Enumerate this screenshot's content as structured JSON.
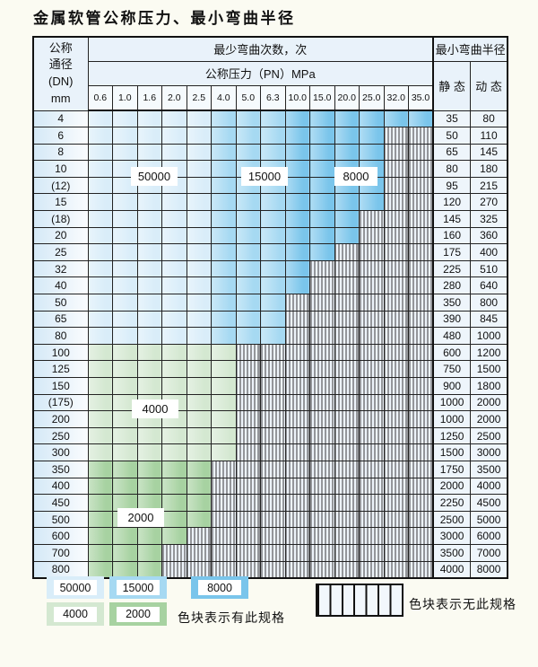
{
  "title": "金属软管公称压力、最小弯曲半径",
  "colors": {
    "blue_50000": "#d9edf9",
    "blue_15000": "#a6d9f2",
    "blue_8000": "#7ac5eb",
    "green_4000": "#d4e8d1",
    "green_2000": "#a7d2a1",
    "hatch_bg": "#edf3fa"
  },
  "table": {
    "header": {
      "dn_lines": [
        "公称",
        "通径",
        "(DN)",
        "mm"
      ],
      "bend_cycles": "最少弯曲次数，次",
      "pressure": "公称压力（PN）MPa",
      "radius": "最小弯曲半径",
      "static_label": "静 态",
      "dynamic_label": "动 态",
      "pn_columns": [
        "0.6",
        "1.0",
        "1.6",
        "2.0",
        "2.5",
        "4.0",
        "5.0",
        "6.3",
        "10.0",
        "15.0",
        "20.0",
        "25.0",
        "32.0",
        "35.0"
      ]
    },
    "rows": [
      {
        "dn": "4",
        "pn_max": "35.0",
        "zone": "blue",
        "static": "35",
        "dynamic": "80"
      },
      {
        "dn": "6",
        "pn_max": "25.0",
        "zone": "blue",
        "static": "50",
        "dynamic": "110"
      },
      {
        "dn": "8",
        "pn_max": "25.0",
        "zone": "blue",
        "static": "65",
        "dynamic": "145"
      },
      {
        "dn": "10",
        "pn_max": "25.0",
        "zone": "blue",
        "static": "80",
        "dynamic": "180"
      },
      {
        "dn": "(12)",
        "pn_max": "25.0",
        "zone": "blue",
        "static": "95",
        "dynamic": "215"
      },
      {
        "dn": "15",
        "pn_max": "25.0",
        "zone": "blue",
        "static": "120",
        "dynamic": "270"
      },
      {
        "dn": "(18)",
        "pn_max": "20.0",
        "zone": "blue",
        "static": "145",
        "dynamic": "325"
      },
      {
        "dn": "20",
        "pn_max": "20.0",
        "zone": "blue",
        "static": "160",
        "dynamic": "360"
      },
      {
        "dn": "25",
        "pn_max": "15.0",
        "zone": "blue",
        "static": "175",
        "dynamic": "400"
      },
      {
        "dn": "32",
        "pn_max": "10.0",
        "zone": "blue",
        "static": "225",
        "dynamic": "510"
      },
      {
        "dn": "40",
        "pn_max": "10.0",
        "zone": "blue",
        "static": "280",
        "dynamic": "640"
      },
      {
        "dn": "50",
        "pn_max": "6.3",
        "zone": "blue",
        "static": "350",
        "dynamic": "800"
      },
      {
        "dn": "65",
        "pn_max": "6.3",
        "zone": "blue",
        "static": "390",
        "dynamic": "845"
      },
      {
        "dn": "80",
        "pn_max": "6.3",
        "zone": "blue",
        "static": "480",
        "dynamic": "1000"
      },
      {
        "dn": "100",
        "pn_max": "4.0",
        "zone": "4000",
        "static": "600",
        "dynamic": "1200"
      },
      {
        "dn": "125",
        "pn_max": "4.0",
        "zone": "4000",
        "static": "750",
        "dynamic": "1500"
      },
      {
        "dn": "150",
        "pn_max": "4.0",
        "zone": "4000",
        "static": "900",
        "dynamic": "1800"
      },
      {
        "dn": "(175)",
        "pn_max": "4.0",
        "zone": "4000",
        "static": "1000",
        "dynamic": "2000"
      },
      {
        "dn": "200",
        "pn_max": "4.0",
        "zone": "4000",
        "static": "1000",
        "dynamic": "2000"
      },
      {
        "dn": "250",
        "pn_max": "4.0",
        "zone": "4000",
        "static": "1250",
        "dynamic": "2500"
      },
      {
        "dn": "300",
        "pn_max": "4.0",
        "zone": "4000",
        "static": "1500",
        "dynamic": "3000"
      },
      {
        "dn": "350",
        "pn_max": "2.5",
        "zone": "2000",
        "static": "1750",
        "dynamic": "3500"
      },
      {
        "dn": "400",
        "pn_max": "2.5",
        "zone": "2000",
        "static": "2000",
        "dynamic": "4000"
      },
      {
        "dn": "450",
        "pn_max": "2.5",
        "zone": "2000",
        "static": "2250",
        "dynamic": "4500"
      },
      {
        "dn": "500",
        "pn_max": "2.5",
        "zone": "2000",
        "static": "2500",
        "dynamic": "5000"
      },
      {
        "dn": "600",
        "pn_max": "2.0",
        "zone": "2000",
        "static": "3000",
        "dynamic": "6000"
      },
      {
        "dn": "700",
        "pn_max": "1.6",
        "zone": "2000",
        "static": "3500",
        "dynamic": "7000"
      },
      {
        "dn": "800",
        "pn_max": "1.6",
        "zone": "2000",
        "static": "4000",
        "dynamic": "8000"
      }
    ]
  },
  "overlay_labels": [
    "50000",
    "15000",
    "8000",
    "4000",
    "2000"
  ],
  "legend": {
    "items": [
      {
        "value": "50000",
        "color": "blue_50000"
      },
      {
        "value": "15000",
        "color": "blue_15000"
      },
      {
        "value": "8000",
        "color": "blue_8000"
      },
      {
        "value": "4000",
        "color": "green_4000"
      },
      {
        "value": "2000",
        "color": "green_2000"
      }
    ],
    "has_spec": "色块表示有此规格",
    "no_spec": "色块表示无此规格"
  }
}
